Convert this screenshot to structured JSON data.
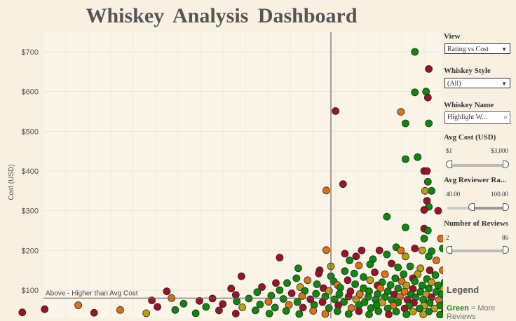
{
  "title": "Whiskey Analysis Dashboard",
  "chart_data": {
    "type": "scatter",
    "ylabel": "Cost (USD)",
    "xlabel": "",
    "yticks": [
      "$100",
      "$200",
      "$300",
      "$400",
      "$500",
      "$600",
      "$700"
    ],
    "ylim": [
      35,
      720
    ],
    "xlim": [
      40,
      100
    ],
    "avg_cost": 80,
    "avg_rating": 86,
    "annotation": "Above - Higher than Avg Cost",
    "colors": {
      "green": "#0a8a0a",
      "olive": "#b8a010",
      "orange": "#e07010",
      "red": "#a01025"
    },
    "points": [
      {
        "x": 95,
        "y": 700,
        "c": "green"
      },
      {
        "x": 96.5,
        "y": 657,
        "c": "red"
      },
      {
        "x": 95,
        "y": 598,
        "c": "green"
      },
      {
        "x": 96.2,
        "y": 600,
        "c": "green"
      },
      {
        "x": 96.4,
        "y": 585,
        "c": "red"
      },
      {
        "x": 86.5,
        "y": 551,
        "c": "red"
      },
      {
        "x": 93.5,
        "y": 549,
        "c": "orange"
      },
      {
        "x": 94,
        "y": 520,
        "c": "green"
      },
      {
        "x": 96.5,
        "y": 520,
        "c": "green"
      },
      {
        "x": 95.3,
        "y": 435,
        "c": "green"
      },
      {
        "x": 94,
        "y": 430,
        "c": "green"
      },
      {
        "x": 98.5,
        "y": 418,
        "c": "olive"
      },
      {
        "x": 99.2,
        "y": 410,
        "c": "orange"
      },
      {
        "x": 99.7,
        "y": 408,
        "c": "green"
      },
      {
        "x": 96,
        "y": 400,
        "c": "red"
      },
      {
        "x": 96.3,
        "y": 400,
        "c": "red"
      },
      {
        "x": 99.5,
        "y": 395,
        "c": "olive"
      },
      {
        "x": 99,
        "y": 375,
        "c": "orange"
      },
      {
        "x": 96.4,
        "y": 373,
        "c": "green"
      },
      {
        "x": 87.3,
        "y": 367,
        "c": "red"
      },
      {
        "x": 85.5,
        "y": 351,
        "c": "orange"
      },
      {
        "x": 96.1,
        "y": 350,
        "c": "olive"
      },
      {
        "x": 96.8,
        "y": 350,
        "c": "green"
      },
      {
        "x": 96.3,
        "y": 325,
        "c": "red"
      },
      {
        "x": 96.5,
        "y": 310,
        "c": "green"
      },
      {
        "x": 96,
        "y": 302,
        "c": "red"
      },
      {
        "x": 97.5,
        "y": 300,
        "c": "red"
      },
      {
        "x": 99,
        "y": 302,
        "c": "orange"
      },
      {
        "x": 99.6,
        "y": 300,
        "c": "red"
      },
      {
        "x": 92,
        "y": 285,
        "c": "green"
      },
      {
        "x": 99.8,
        "y": 270,
        "c": "olive"
      },
      {
        "x": 99.5,
        "y": 265,
        "c": "green"
      },
      {
        "x": 94,
        "y": 258,
        "c": "green"
      },
      {
        "x": 96,
        "y": 255,
        "c": "red"
      },
      {
        "x": 96.4,
        "y": 250,
        "c": "green"
      },
      {
        "x": 99.2,
        "y": 252,
        "c": "olive"
      },
      {
        "x": 98.5,
        "y": 240,
        "c": "green"
      },
      {
        "x": 97.8,
        "y": 230,
        "c": "orange"
      },
      {
        "x": 96,
        "y": 230,
        "c": "green"
      },
      {
        "x": 99.5,
        "y": 232,
        "c": "green"
      },
      {
        "x": 101.5,
        "y": 215,
        "c": "green"
      },
      {
        "x": 93,
        "y": 208,
        "c": "green"
      },
      {
        "x": 95,
        "y": 205,
        "c": "red"
      },
      {
        "x": 98,
        "y": 205,
        "c": "green"
      },
      {
        "x": 85.5,
        "y": 201,
        "c": "orange"
      },
      {
        "x": 89.3,
        "y": 200,
        "c": "red"
      },
      {
        "x": 91.2,
        "y": 200,
        "c": "red"
      },
      {
        "x": 93.5,
        "y": 200,
        "c": "orange"
      },
      {
        "x": 95.8,
        "y": 200,
        "c": "olive"
      },
      {
        "x": 96.8,
        "y": 198,
        "c": "green"
      },
      {
        "x": 100,
        "y": 195,
        "c": "red"
      },
      {
        "x": 100.6,
        "y": 190,
        "c": "red"
      },
      {
        "x": 87.5,
        "y": 192,
        "c": "red"
      },
      {
        "x": 88.7,
        "y": 185,
        "c": "red"
      },
      {
        "x": 92,
        "y": 190,
        "c": "green"
      },
      {
        "x": 94,
        "y": 185,
        "c": "olive"
      },
      {
        "x": 96.5,
        "y": 185,
        "c": "green"
      },
      {
        "x": 90.5,
        "y": 178,
        "c": "green"
      },
      {
        "x": 88,
        "y": 175,
        "c": "green"
      },
      {
        "x": 97.3,
        "y": 175,
        "c": "orange"
      },
      {
        "x": 80.5,
        "y": 182,
        "c": "red"
      },
      {
        "x": 101,
        "y": 178,
        "c": "red"
      },
      {
        "x": 99.7,
        "y": 168,
        "c": "green"
      },
      {
        "x": 86,
        "y": 160,
        "c": "olive"
      },
      {
        "x": 89,
        "y": 162,
        "c": "orange"
      },
      {
        "x": 90.2,
        "y": 165,
        "c": "green"
      },
      {
        "x": 92.5,
        "y": 167,
        "c": "red"
      },
      {
        "x": 94.5,
        "y": 160,
        "c": "green"
      },
      {
        "x": 93.2,
        "y": 157,
        "c": "green"
      },
      {
        "x": 95.6,
        "y": 155,
        "c": "olive"
      },
      {
        "x": 98.5,
        "y": 162,
        "c": "green"
      },
      {
        "x": 96.6,
        "y": 150,
        "c": "red"
      },
      {
        "x": 98,
        "y": 150,
        "c": "orange"
      },
      {
        "x": 99.3,
        "y": 150,
        "c": "olive"
      },
      {
        "x": 82.5,
        "y": 155,
        "c": "green"
      },
      {
        "x": 84.8,
        "y": 150,
        "c": "red"
      },
      {
        "x": 87.5,
        "y": 148,
        "c": "green"
      },
      {
        "x": 88.5,
        "y": 142,
        "c": "green"
      },
      {
        "x": 90.7,
        "y": 145,
        "c": "red"
      },
      {
        "x": 91.8,
        "y": 140,
        "c": "orange"
      },
      {
        "x": 93.8,
        "y": 140,
        "c": "green"
      },
      {
        "x": 95.3,
        "y": 140,
        "c": "olive"
      },
      {
        "x": 97.2,
        "y": 138,
        "c": "green"
      },
      {
        "x": 100.1,
        "y": 140,
        "c": "olive"
      },
      {
        "x": 84.7,
        "y": 142,
        "c": "red"
      },
      {
        "x": 86,
        "y": 135,
        "c": "green"
      },
      {
        "x": 89.5,
        "y": 133,
        "c": "green"
      },
      {
        "x": 92.9,
        "y": 130,
        "c": "green"
      },
      {
        "x": 94.8,
        "y": 130,
        "c": "red"
      },
      {
        "x": 96.3,
        "y": 128,
        "c": "green"
      },
      {
        "x": 98.5,
        "y": 130,
        "c": "orange"
      },
      {
        "x": 99.8,
        "y": 128,
        "c": "green"
      },
      {
        "x": 76.4,
        "y": 135,
        "c": "red"
      },
      {
        "x": 82.3,
        "y": 130,
        "c": "green"
      },
      {
        "x": 83.5,
        "y": 125,
        "c": "orange"
      },
      {
        "x": 86.3,
        "y": 122,
        "c": "green"
      },
      {
        "x": 87.8,
        "y": 125,
        "c": "red"
      },
      {
        "x": 90.2,
        "y": 125,
        "c": "olive"
      },
      {
        "x": 91.5,
        "y": 120,
        "c": "green"
      },
      {
        "x": 93.6,
        "y": 122,
        "c": "orange"
      },
      {
        "x": 95,
        "y": 122,
        "c": "green"
      },
      {
        "x": 96.8,
        "y": 120,
        "c": "olive"
      },
      {
        "x": 98.2,
        "y": 120,
        "c": "green"
      },
      {
        "x": 99.4,
        "y": 118,
        "c": "red"
      },
      {
        "x": 80.1,
        "y": 118,
        "c": "red"
      },
      {
        "x": 81.3,
        "y": 118,
        "c": "green"
      },
      {
        "x": 84.5,
        "y": 115,
        "c": "green"
      },
      {
        "x": 86.7,
        "y": 113,
        "c": "orange"
      },
      {
        "x": 88.6,
        "y": 115,
        "c": "green"
      },
      {
        "x": 91,
        "y": 112,
        "c": "red"
      },
      {
        "x": 92.4,
        "y": 113,
        "c": "green"
      },
      {
        "x": 94.1,
        "y": 112,
        "c": "olive"
      },
      {
        "x": 95.8,
        "y": 112,
        "c": "green"
      },
      {
        "x": 97.5,
        "y": 112,
        "c": "green"
      },
      {
        "x": 99,
        "y": 110,
        "c": "orange"
      },
      {
        "x": 100.8,
        "y": 112,
        "c": "green"
      },
      {
        "x": 78.6,
        "y": 108,
        "c": "red"
      },
      {
        "x": 82.7,
        "y": 108,
        "c": "olive"
      },
      {
        "x": 85.2,
        "y": 105,
        "c": "red"
      },
      {
        "x": 87,
        "y": 106,
        "c": "green"
      },
      {
        "x": 89.5,
        "y": 105,
        "c": "green"
      },
      {
        "x": 91.3,
        "y": 105,
        "c": "orange"
      },
      {
        "x": 93.2,
        "y": 104,
        "c": "green"
      },
      {
        "x": 94.8,
        "y": 103,
        "c": "red"
      },
      {
        "x": 96.5,
        "y": 104,
        "c": "green"
      },
      {
        "x": 98.1,
        "y": 103,
        "c": "olive"
      },
      {
        "x": 99.8,
        "y": 104,
        "c": "green"
      },
      {
        "x": 75.3,
        "y": 104,
        "c": "red"
      },
      {
        "x": 80.5,
        "y": 100,
        "c": "green"
      },
      {
        "x": 83.2,
        "y": 98,
        "c": "green"
      },
      {
        "x": 85.8,
        "y": 98,
        "c": "olive"
      },
      {
        "x": 88.1,
        "y": 97,
        "c": "red"
      },
      {
        "x": 90.1,
        "y": 97,
        "c": "green"
      },
      {
        "x": 92.1,
        "y": 97,
        "c": "green"
      },
      {
        "x": 93.9,
        "y": 96,
        "c": "orange"
      },
      {
        "x": 95.6,
        "y": 96,
        "c": "green"
      },
      {
        "x": 97.3,
        "y": 96,
        "c": "green"
      },
      {
        "x": 98.9,
        "y": 95,
        "c": "red"
      },
      {
        "x": 100.5,
        "y": 96,
        "c": "olive"
      },
      {
        "x": 68.4,
        "y": 97,
        "c": "red"
      },
      {
        "x": 78.1,
        "y": 95,
        "c": "green"
      },
      {
        "x": 81.8,
        "y": 92,
        "c": "red"
      },
      {
        "x": 84.4,
        "y": 91,
        "c": "green"
      },
      {
        "x": 86.9,
        "y": 90,
        "c": "green"
      },
      {
        "x": 89.1,
        "y": 90,
        "c": "orange"
      },
      {
        "x": 91,
        "y": 90,
        "c": "green"
      },
      {
        "x": 92.8,
        "y": 89,
        "c": "red"
      },
      {
        "x": 94.6,
        "y": 89,
        "c": "green"
      },
      {
        "x": 96.2,
        "y": 89,
        "c": "olive"
      },
      {
        "x": 97.9,
        "y": 89,
        "c": "green"
      },
      {
        "x": 99.5,
        "y": 88,
        "c": "green"
      },
      {
        "x": 101.4,
        "y": 90,
        "c": "red"
      },
      {
        "x": 75.8,
        "y": 88,
        "c": "red"
      },
      {
        "x": 79.6,
        "y": 86,
        "c": "green"
      },
      {
        "x": 82.9,
        "y": 85,
        "c": "orange"
      },
      {
        "x": 85.4,
        "y": 84,
        "c": "green"
      },
      {
        "x": 87.9,
        "y": 84,
        "c": "red"
      },
      {
        "x": 90,
        "y": 83,
        "c": "green"
      },
      {
        "x": 91.8,
        "y": 83,
        "c": "green"
      },
      {
        "x": 93.4,
        "y": 83,
        "c": "orange"
      },
      {
        "x": 95.1,
        "y": 82,
        "c": "green"
      },
      {
        "x": 96.8,
        "y": 82,
        "c": "red"
      },
      {
        "x": 98.4,
        "y": 82,
        "c": "green"
      },
      {
        "x": 100.1,
        "y": 82,
        "c": "olive"
      },
      {
        "x": 102.3,
        "y": 83,
        "c": "orange"
      },
      {
        "x": 68.9,
        "y": 80,
        "c": "orange"
      },
      {
        "x": 73.3,
        "y": 79,
        "c": "red"
      },
      {
        "x": 77.2,
        "y": 79,
        "c": "green"
      },
      {
        "x": 80.9,
        "y": 78,
        "c": "green"
      },
      {
        "x": 83.8,
        "y": 77,
        "c": "red"
      },
      {
        "x": 86.4,
        "y": 77,
        "c": "green"
      },
      {
        "x": 88.7,
        "y": 77,
        "c": "olive"
      },
      {
        "x": 90.8,
        "y": 76,
        "c": "green"
      },
      {
        "x": 92.5,
        "y": 76,
        "c": "green"
      },
      {
        "x": 94.2,
        "y": 76,
        "c": "red"
      },
      {
        "x": 95.9,
        "y": 76,
        "c": "green"
      },
      {
        "x": 97.6,
        "y": 75,
        "c": "orange"
      },
      {
        "x": 99.2,
        "y": 75,
        "c": "green"
      },
      {
        "x": 100.9,
        "y": 75,
        "c": "green"
      },
      {
        "x": 66.8,
        "y": 74,
        "c": "red"
      },
      {
        "x": 71.9,
        "y": 73,
        "c": "red"
      },
      {
        "x": 75.9,
        "y": 72,
        "c": "green"
      },
      {
        "x": 79.3,
        "y": 71,
        "c": "orange"
      },
      {
        "x": 82.4,
        "y": 70,
        "c": "green"
      },
      {
        "x": 85.1,
        "y": 70,
        "c": "red"
      },
      {
        "x": 87.4,
        "y": 70,
        "c": "green"
      },
      {
        "x": 89.6,
        "y": 69,
        "c": "green"
      },
      {
        "x": 91.5,
        "y": 69,
        "c": "olive"
      },
      {
        "x": 93.2,
        "y": 69,
        "c": "green"
      },
      {
        "x": 94.9,
        "y": 68,
        "c": "red"
      },
      {
        "x": 96.6,
        "y": 68,
        "c": "green"
      },
      {
        "x": 98.3,
        "y": 68,
        "c": "green"
      },
      {
        "x": 100,
        "y": 68,
        "c": "orange"
      },
      {
        "x": 101.8,
        "y": 68,
        "c": "green"
      },
      {
        "x": 70.2,
        "y": 66,
        "c": "green"
      },
      {
        "x": 74.4,
        "y": 65,
        "c": "red"
      },
      {
        "x": 78.4,
        "y": 64,
        "c": "green"
      },
      {
        "x": 81.5,
        "y": 63,
        "c": "orange"
      },
      {
        "x": 84.2,
        "y": 63,
        "c": "green"
      },
      {
        "x": 86.8,
        "y": 62,
        "c": "red"
      },
      {
        "x": 89,
        "y": 62,
        "c": "green"
      },
      {
        "x": 90.9,
        "y": 62,
        "c": "green"
      },
      {
        "x": 92.7,
        "y": 61,
        "c": "orange"
      },
      {
        "x": 94.4,
        "y": 61,
        "c": "green"
      },
      {
        "x": 96,
        "y": 61,
        "c": "olive"
      },
      {
        "x": 97.7,
        "y": 61,
        "c": "green"
      },
      {
        "x": 99.4,
        "y": 60,
        "c": "red"
      },
      {
        "x": 101.1,
        "y": 60,
        "c": "green"
      },
      {
        "x": 58.9,
        "y": 62,
        "c": "orange"
      },
      {
        "x": 67.4,
        "y": 58,
        "c": "red"
      },
      {
        "x": 72.6,
        "y": 58,
        "c": "green"
      },
      {
        "x": 76.5,
        "y": 57,
        "c": "olive"
      },
      {
        "x": 80,
        "y": 56,
        "c": "green"
      },
      {
        "x": 83,
        "y": 56,
        "c": "red"
      },
      {
        "x": 85.8,
        "y": 55,
        "c": "green"
      },
      {
        "x": 88.2,
        "y": 55,
        "c": "orange"
      },
      {
        "x": 90.3,
        "y": 55,
        "c": "green"
      },
      {
        "x": 92.1,
        "y": 54,
        "c": "green"
      },
      {
        "x": 93.9,
        "y": 54,
        "c": "red"
      },
      {
        "x": 95.5,
        "y": 54,
        "c": "green"
      },
      {
        "x": 97.1,
        "y": 54,
        "c": "olive"
      },
      {
        "x": 98.8,
        "y": 53,
        "c": "green"
      },
      {
        "x": 100.5,
        "y": 53,
        "c": "orange"
      },
      {
        "x": 55.3,
        "y": 52,
        "c": "red"
      },
      {
        "x": 63.4,
        "y": 50,
        "c": "orange"
      },
      {
        "x": 69.3,
        "y": 50,
        "c": "green"
      },
      {
        "x": 74,
        "y": 49,
        "c": "red"
      },
      {
        "x": 77.9,
        "y": 49,
        "c": "green"
      },
      {
        "x": 81.2,
        "y": 48,
        "c": "green"
      },
      {
        "x": 84.1,
        "y": 48,
        "c": "orange"
      },
      {
        "x": 86.7,
        "y": 47,
        "c": "green"
      },
      {
        "x": 89,
        "y": 47,
        "c": "red"
      },
      {
        "x": 91.1,
        "y": 47,
        "c": "green"
      },
      {
        "x": 93,
        "y": 46,
        "c": "green"
      },
      {
        "x": 94.8,
        "y": 46,
        "c": "olive"
      },
      {
        "x": 96.5,
        "y": 46,
        "c": "green"
      },
      {
        "x": 98.2,
        "y": 46,
        "c": "red"
      },
      {
        "x": 100,
        "y": 45,
        "c": "green"
      },
      {
        "x": 52.9,
        "y": 44,
        "c": "red"
      },
      {
        "x": 60.6,
        "y": 43,
        "c": "red"
      },
      {
        "x": 66.2,
        "y": 42,
        "c": "olive"
      },
      {
        "x": 71.5,
        "y": 42,
        "c": "green"
      },
      {
        "x": 75.8,
        "y": 41,
        "c": "red"
      },
      {
        "x": 79.4,
        "y": 41,
        "c": "green"
      },
      {
        "x": 82.6,
        "y": 40,
        "c": "green"
      },
      {
        "x": 85.4,
        "y": 40,
        "c": "orange"
      },
      {
        "x": 87.9,
        "y": 40,
        "c": "green"
      },
      {
        "x": 90.1,
        "y": 39,
        "c": "green"
      },
      {
        "x": 92.2,
        "y": 39,
        "c": "red"
      },
      {
        "x": 94.1,
        "y": 39,
        "c": "green"
      },
      {
        "x": 95.9,
        "y": 39,
        "c": "olive"
      },
      {
        "x": 97.7,
        "y": 38,
        "c": "green"
      },
      {
        "x": 99.5,
        "y": 38,
        "c": "green"
      }
    ]
  },
  "panel": {
    "view_label": "View",
    "view_value": "Rating vs Cost",
    "style_label": "Whiskey Style",
    "style_value": "(All)",
    "name_label": "Whiskey Name",
    "name_placeholder": "Highlight W...",
    "cost_label": "Avg Cost (USD)",
    "cost_min": "$1",
    "cost_max": "$3,000",
    "rating_label": "Avg Reviewer Ra...",
    "rating_min": "40.00",
    "rating_max": "100.00",
    "rating_low_fraction": 0.5,
    "reviews_label": "Number of Reviews",
    "reviews_min": "2",
    "reviews_max": "86",
    "legend_title": "Legend",
    "legend_green_word": "Green",
    "legend_green_text": " = More Reviews"
  }
}
